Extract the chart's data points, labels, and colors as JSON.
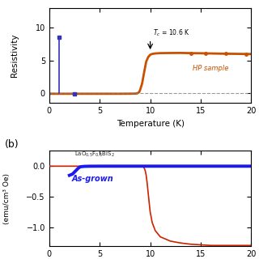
{
  "panel_a": {
    "xlabel": "Temperature (K)",
    "ylabel": "Resistivity",
    "xlim": [
      0,
      20
    ],
    "ylim": [
      -1.5,
      13
    ],
    "yticks": [
      0,
      5,
      10
    ],
    "xticks": [
      0,
      5,
      10,
      15,
      20
    ],
    "hp_color": "#c85000",
    "blue_color": "#3333bb",
    "hp_label": "HP sample",
    "tc_label": "T_c = 10.6 K"
  },
  "panel_b": {
    "ylabel": "(emu/cm³ Oe)",
    "xlim": [
      0,
      20
    ],
    "ylim": [
      -1.3,
      0.25
    ],
    "yticks": [
      0,
      -0.5,
      -1
    ],
    "xticks": [
      0,
      5,
      10,
      15,
      20
    ],
    "blue_color": "#1a1aee",
    "red_color": "#cc2200",
    "formula": "LaO$_{0.5}$F$_{0.5}$BiS$_2$",
    "label": "As-grown",
    "panel_label": "(b)"
  },
  "background_color": "#ffffff"
}
